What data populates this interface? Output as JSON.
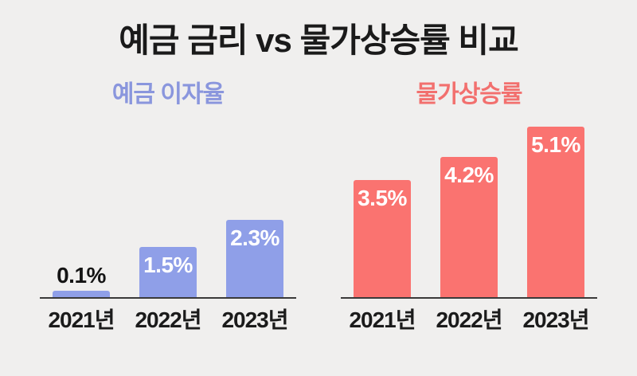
{
  "title": "예금 금리 vs 물가상승률 비교",
  "background_color": "#f0efee",
  "axis_color": "#3a3a3a",
  "chart_data": [
    {
      "type": "bar",
      "title": "예금 이자율",
      "title_color": "#8a96dd",
      "bar_color": "#8f9fe8",
      "categories": [
        "2021년",
        "2022년",
        "2023년"
      ],
      "values": [
        0.1,
        1.5,
        2.3
      ],
      "value_labels": [
        "0.1%",
        "1.5%",
        "2.3%"
      ],
      "label_positions": [
        "above",
        "inside",
        "inside"
      ],
      "unit": "%",
      "ylim": [
        0,
        5.6
      ],
      "grid": false,
      "legend": false
    },
    {
      "type": "bar",
      "title": "물가상승률",
      "title_color": "#f2706e",
      "bar_color": "#fa7370",
      "categories": [
        "2021년",
        "2022년",
        "2023년"
      ],
      "values": [
        3.5,
        4.2,
        5.1
      ],
      "value_labels": [
        "3.5%",
        "4.2%",
        "5.1%"
      ],
      "label_positions": [
        "inside",
        "inside",
        "inside"
      ],
      "unit": "%",
      "ylim": [
        0,
        5.6
      ],
      "grid": false,
      "legend": false
    }
  ]
}
